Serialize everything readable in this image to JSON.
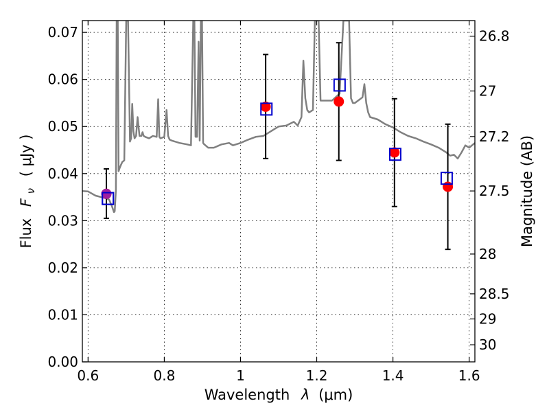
{
  "chart_data": {
    "type": "scatter",
    "xlabel_text": "Wavelength",
    "xlabel_math": "λ",
    "xlabel_unit": "(μm)",
    "ylabel_text": "Flux",
    "ylabel_math": "F",
    "ylabel_sub": "ν",
    "ylabel_unit": "( μJy )",
    "y2label": "Magnitude (AB)",
    "xlim": [
      0.585,
      1.615
    ],
    "ylim": [
      0.0,
      0.0725
    ],
    "grid": true,
    "x_ticks": [
      0.6,
      0.8,
      1.0,
      1.2,
      1.4,
      1.6
    ],
    "x_tick_labels": [
      "0.6",
      "0.8",
      "1",
      "1.2",
      "1.4",
      "1.6"
    ],
    "y_ticks": [
      0.0,
      0.01,
      0.02,
      0.03,
      0.04,
      0.05,
      0.06,
      0.07
    ],
    "y_tick_labels": [
      "0.00",
      "0.01",
      "0.02",
      "0.03",
      "0.04",
      "0.05",
      "0.06",
      "0.07"
    ],
    "y2_ticks": [
      26.8,
      27.0,
      27.2,
      27.5,
      28.0,
      28.5,
      29.0,
      30.0
    ],
    "y2_tick_labels": [
      "26.8",
      "27",
      "27.2",
      "27.5",
      "28",
      "28.5",
      "29",
      "30"
    ],
    "series": [
      {
        "kind": "model_sed",
        "color": "#808080",
        "x": [
          0.585,
          0.6,
          0.62,
          0.635,
          0.645,
          0.655,
          0.663,
          0.668,
          0.67,
          0.673,
          0.675,
          0.678,
          0.68,
          0.683,
          0.686,
          0.69,
          0.695,
          0.7,
          0.705,
          0.71,
          0.713,
          0.716,
          0.719,
          0.722,
          0.726,
          0.73,
          0.735,
          0.74,
          0.743,
          0.746,
          0.75,
          0.76,
          0.77,
          0.78,
          0.784,
          0.787,
          0.79,
          0.8,
          0.806,
          0.81,
          0.814,
          0.82,
          0.84,
          0.86,
          0.87,
          0.876,
          0.879,
          0.882,
          0.886,
          0.89,
          0.893,
          0.896,
          0.899,
          0.902,
          0.905,
          0.908,
          0.915,
          0.93,
          0.95,
          0.97,
          0.98,
          1.0,
          1.02,
          1.04,
          1.06,
          1.08,
          1.1,
          1.12,
          1.14,
          1.15,
          1.16,
          1.165,
          1.17,
          1.175,
          1.18,
          1.19,
          1.195,
          1.2,
          1.205,
          1.21,
          1.22,
          1.24,
          1.26,
          1.27,
          1.28,
          1.285,
          1.29,
          1.295,
          1.3,
          1.32,
          1.325,
          1.33,
          1.335,
          1.34,
          1.36,
          1.38,
          1.4,
          1.42,
          1.44,
          1.46,
          1.48,
          1.5,
          1.52,
          1.54,
          1.55,
          1.56,
          1.57,
          1.58,
          1.59,
          1.6,
          1.615
        ],
        "y": [
          0.0363,
          0.0362,
          0.0353,
          0.035,
          0.0348,
          0.0345,
          0.033,
          0.0318,
          0.032,
          0.0365,
          0.0725,
          0.0725,
          0.0405,
          0.0412,
          0.0418,
          0.0425,
          0.0428,
          0.0725,
          0.0725,
          0.0468,
          0.0475,
          0.0548,
          0.049,
          0.0475,
          0.048,
          0.052,
          0.048,
          0.048,
          0.0488,
          0.048,
          0.0478,
          0.0475,
          0.048,
          0.0478,
          0.0558,
          0.0478,
          0.0475,
          0.0478,
          0.0535,
          0.048,
          0.0472,
          0.047,
          0.0465,
          0.0462,
          0.046,
          0.0725,
          0.0725,
          0.0478,
          0.0478,
          0.068,
          0.047,
          0.0725,
          0.0725,
          0.0465,
          0.0462,
          0.046,
          0.0455,
          0.0455,
          0.0462,
          0.0465,
          0.046,
          0.0465,
          0.0472,
          0.0478,
          0.048,
          0.049,
          0.05,
          0.0502,
          0.051,
          0.0502,
          0.052,
          0.064,
          0.056,
          0.0535,
          0.053,
          0.0535,
          0.0725,
          0.0725,
          0.0725,
          0.0555,
          0.0555,
          0.0555,
          0.057,
          0.0725,
          0.0725,
          0.0725,
          0.056,
          0.055,
          0.055,
          0.0562,
          0.059,
          0.055,
          0.053,
          0.052,
          0.0515,
          0.0505,
          0.0498,
          0.0488,
          0.048,
          0.0475,
          0.0468,
          0.0462,
          0.0455,
          0.0445,
          0.0438,
          0.044,
          0.0432,
          0.0445,
          0.046,
          0.0455,
          0.0465
        ]
      },
      {
        "kind": "observed",
        "color": "#ff0000",
        "x": [
          0.648,
          1.066,
          1.258,
          1.404,
          1.544
        ],
        "y": [
          0.0357,
          0.0542,
          0.0553,
          0.0445,
          0.0372
        ],
        "yerr_low": [
          0.0052,
          0.011,
          0.0125,
          0.0115,
          0.0133
        ],
        "yerr_high": [
          0.0053,
          0.0111,
          0.0125,
          0.0114,
          0.0133
        ]
      },
      {
        "kind": "model_photometry",
        "color": "#0000cc",
        "x": [
          0.652,
          1.068,
          1.26,
          1.406,
          1.541
        ],
        "y": [
          0.0347,
          0.0537,
          0.0588,
          0.0441,
          0.039
        ]
      }
    ]
  }
}
